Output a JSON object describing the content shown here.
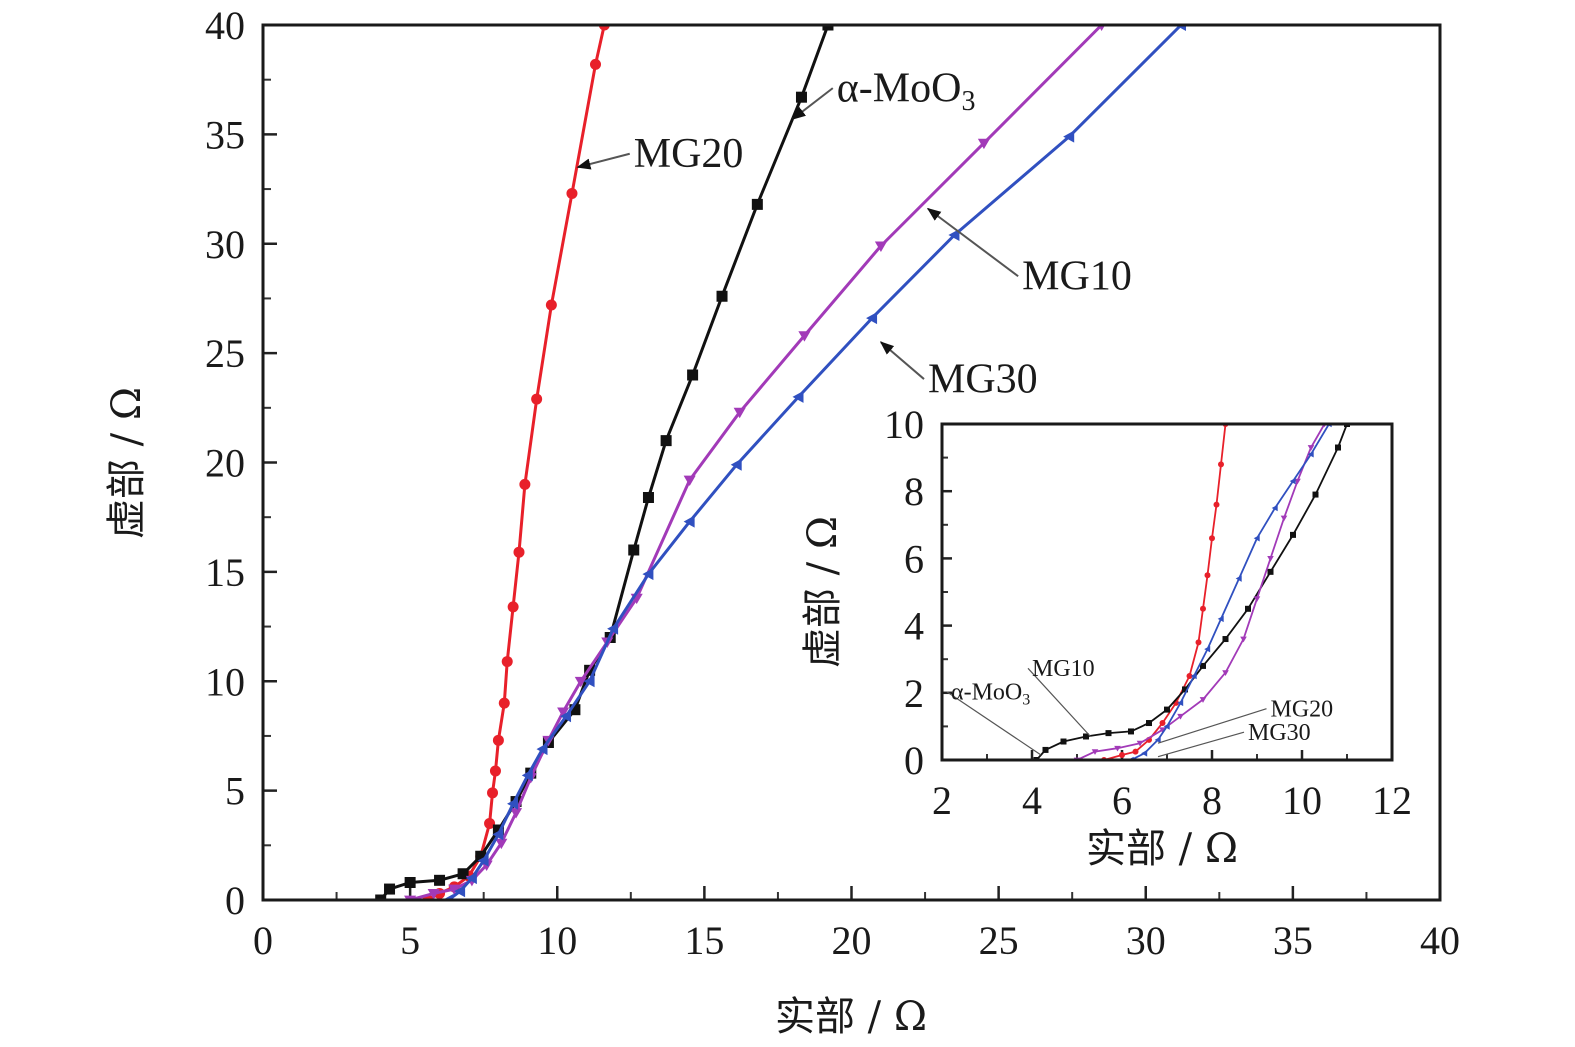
{
  "chart_data": [
    {
      "id": "main",
      "type": "line",
      "title": "",
      "xlabel": "实部 / Ω",
      "ylabel": "虚部 / Ω",
      "xlim": [
        0,
        40
      ],
      "ylim": [
        0,
        40
      ],
      "xticks": [
        0,
        5,
        10,
        15,
        20,
        25,
        30,
        35,
        40
      ],
      "yticks": [
        0,
        5,
        10,
        15,
        20,
        25,
        30,
        35,
        40
      ],
      "xtick_labels": [
        "0",
        "5",
        "10",
        "15",
        "20",
        "25",
        "30",
        "35",
        "40"
      ],
      "ytick_labels": [
        "0",
        "5",
        "10",
        "15",
        "20",
        "25",
        "30",
        "35",
        "40"
      ],
      "grid": false,
      "series": [
        {
          "name": "MG20",
          "color": "#e8202a",
          "marker": "circle",
          "x": [
            5.6,
            6.0,
            6.5,
            7.0,
            7.4,
            7.7,
            7.8,
            7.9,
            8.0,
            8.2,
            8.3,
            8.5,
            8.7,
            8.9,
            9.3,
            9.8,
            10.5,
            11.3,
            11.6
          ],
          "y": [
            0.0,
            0.3,
            0.6,
            1.1,
            2.0,
            3.5,
            4.9,
            5.9,
            7.3,
            9.0,
            10.9,
            13.4,
            15.9,
            19.0,
            22.9,
            27.2,
            32.3,
            38.2,
            40.0
          ]
        },
        {
          "name": "α-MoO3",
          "color": "#111111",
          "marker": "square",
          "x": [
            4.0,
            4.3,
            5.0,
            6.0,
            6.8,
            7.4,
            8.0,
            8.6,
            9.1,
            9.7,
            10.6,
            11.1,
            11.8,
            12.6,
            13.1,
            13.7,
            14.6,
            15.6,
            16.8,
            18.3,
            19.2
          ],
          "y": [
            0.0,
            0.5,
            0.8,
            0.9,
            1.2,
            2.0,
            3.2,
            4.5,
            5.8,
            7.2,
            8.7,
            10.5,
            12.0,
            16.0,
            18.4,
            21.0,
            24.0,
            27.6,
            31.8,
            36.7,
            40.0
          ]
        },
        {
          "name": "MG10",
          "color": "#a23ab8",
          "marker": "triangle-down",
          "x": [
            5.0,
            5.8,
            6.5,
            7.1,
            7.6,
            8.1,
            8.6,
            9.1,
            9.7,
            10.2,
            10.8,
            11.7,
            12.7,
            14.5,
            16.2,
            18.4,
            21.0,
            24.5,
            28.5
          ],
          "y": [
            0.0,
            0.3,
            0.5,
            0.9,
            1.6,
            2.6,
            4.0,
            5.6,
            7.3,
            8.6,
            10.0,
            11.8,
            13.8,
            19.2,
            22.3,
            25.8,
            29.9,
            34.6,
            40.0
          ]
        },
        {
          "name": "MG30",
          "color": "#3050c0",
          "marker": "triangle-left",
          "x": [
            6.3,
            6.7,
            7.1,
            7.5,
            8.0,
            8.5,
            9.0,
            9.5,
            10.3,
            11.1,
            11.9,
            13.1,
            14.5,
            16.1,
            18.2,
            20.7,
            23.5,
            27.4,
            31.2
          ],
          "y": [
            0.0,
            0.4,
            1.0,
            1.8,
            3.0,
            4.4,
            5.7,
            6.9,
            8.4,
            10.0,
            12.4,
            14.9,
            17.3,
            19.9,
            23.0,
            26.6,
            30.4,
            34.9,
            40.0
          ]
        }
      ],
      "annotations": [
        {
          "text": "MG20",
          "series": "MG20",
          "point": [
            10.7,
            33.5
          ],
          "text_pos": [
            12.6,
            33.5
          ]
        },
        {
          "text": "α-MoO3",
          "series": "α-MoO3",
          "point": [
            18.0,
            35.7
          ],
          "text_pos": [
            19.5,
            36.5
          ]
        },
        {
          "text": "MG10",
          "series": "MG10",
          "point": [
            22.6,
            31.6
          ],
          "text_pos": [
            25.8,
            27.9
          ]
        },
        {
          "text": "MG30",
          "series": "MG30",
          "point": [
            21.0,
            25.5
          ],
          "text_pos": [
            22.6,
            23.2
          ]
        }
      ]
    },
    {
      "id": "inset",
      "type": "line",
      "title": "",
      "xlabel": "实部 / Ω",
      "ylabel": "虚部 / Ω",
      "xlim": [
        2,
        12
      ],
      "ylim": [
        0,
        10
      ],
      "xticks": [
        2,
        4,
        6,
        8,
        10,
        12
      ],
      "yticks": [
        0,
        2,
        4,
        6,
        8,
        10
      ],
      "xtick_labels": [
        "2",
        "4",
        "6",
        "8",
        "10",
        "12"
      ],
      "ytick_labels": [
        "0",
        "2",
        "4",
        "6",
        "8",
        "10"
      ],
      "grid": false,
      "series": [
        {
          "name": "MG20",
          "color": "#e8202a",
          "marker": "circle",
          "x": [
            5.6,
            6.0,
            6.3,
            6.6,
            6.9,
            7.2,
            7.5,
            7.7,
            7.8,
            7.9,
            8.0,
            8.1,
            8.2,
            8.3
          ],
          "y": [
            0.0,
            0.15,
            0.25,
            0.6,
            1.1,
            1.7,
            2.5,
            3.5,
            4.5,
            5.5,
            6.6,
            7.6,
            8.8,
            10.0
          ]
        },
        {
          "name": "α-MoO3",
          "color": "#111111",
          "marker": "square",
          "x": [
            4.1,
            4.3,
            4.7,
            5.2,
            5.7,
            6.2,
            6.6,
            7.0,
            7.4,
            7.8,
            8.3,
            8.8,
            9.3,
            9.8,
            10.3,
            10.8,
            11.0
          ],
          "y": [
            0.0,
            0.3,
            0.55,
            0.7,
            0.8,
            0.85,
            1.1,
            1.5,
            2.1,
            2.8,
            3.6,
            4.5,
            5.6,
            6.7,
            7.9,
            9.3,
            10.0
          ]
        },
        {
          "name": "MG10",
          "color": "#a23ab8",
          "marker": "triangle-down",
          "x": [
            5.0,
            5.4,
            5.9,
            6.4,
            6.9,
            7.3,
            7.8,
            8.3,
            8.7,
            9.0,
            9.3,
            9.6,
            9.9,
            10.2,
            10.5
          ],
          "y": [
            0.0,
            0.25,
            0.35,
            0.5,
            0.9,
            1.3,
            1.8,
            2.6,
            3.6,
            4.8,
            6.0,
            7.2,
            8.3,
            9.3,
            10.0
          ]
        },
        {
          "name": "MG30",
          "color": "#3050c0",
          "marker": "triangle-left",
          "x": [
            6.2,
            6.5,
            6.8,
            7.0,
            7.3,
            7.6,
            7.9,
            8.2,
            8.6,
            9.0,
            9.4,
            9.8,
            10.2,
            10.6
          ],
          "y": [
            0.0,
            0.2,
            0.6,
            1.0,
            1.7,
            2.5,
            3.3,
            4.2,
            5.4,
            6.6,
            7.5,
            8.3,
            9.1,
            10.0
          ]
        }
      ],
      "annotations": [
        {
          "text": "α-MoO3",
          "series": "α-MoO3",
          "point": [
            4.2,
            0.15
          ],
          "text_pos": [
            2.2,
            1.8
          ]
        },
        {
          "text": "MG10",
          "series": "MG10",
          "point": [
            5.3,
            0.7
          ],
          "text_pos": [
            4.0,
            2.5
          ]
        },
        {
          "text": "MG20",
          "series": "MG20",
          "point": [
            6.8,
            0.5
          ],
          "text_pos": [
            9.3,
            1.3
          ]
        },
        {
          "text": "MG30",
          "series": "MG30",
          "point": [
            6.8,
            0.1
          ],
          "text_pos": [
            8.8,
            0.6
          ]
        }
      ]
    }
  ]
}
